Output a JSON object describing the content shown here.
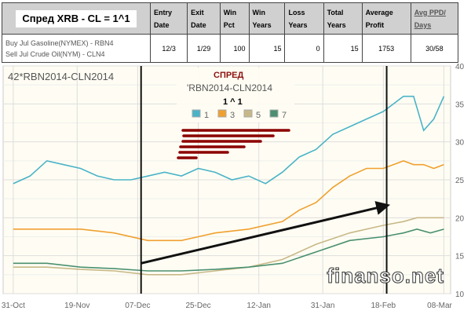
{
  "table": {
    "title": "Спред XRB - CL = 1^1",
    "headers": [
      "Entry Date",
      "Exit Date",
      "Win Pct",
      "Win Years",
      "Loss Years",
      "Total Years",
      "Average Profit",
      "Avg PPD/ Days"
    ],
    "buy_line": "Buy Jul Gasoline(NYMEX) - RBN4",
    "sell_line": "Sell Jul Crude Oil(NYM) - CLN4",
    "values": [
      "12/3",
      "1/29",
      "100",
      "15",
      "0",
      "15",
      "1753",
      "30/58"
    ]
  },
  "chart_data": {
    "type": "line",
    "title": "42*RBN2014-CLN2014",
    "legend_title": "СПРЕД",
    "legend_subtitle": "'RBN2014-CLN2014",
    "legend_ratio": "1 ^ 1",
    "xlabel": "",
    "ylabel": "",
    "ylim": [
      10,
      40
    ],
    "yticks": [
      10,
      15,
      20,
      25,
      30,
      35,
      40
    ],
    "xticks": [
      "31-Oct",
      "19-Nov",
      "07-Dec",
      "25-Dec",
      "12-Jan",
      "31-Jan",
      "18-Feb",
      "08-Mar"
    ],
    "xtick_days": [
      0,
      19,
      37,
      55,
      73,
      92,
      110,
      128
    ],
    "xlim": [
      -3,
      130
    ],
    "series": [
      {
        "name": "1",
        "color": "#4ab3c8",
        "days": [
          0,
          5,
          10,
          15,
          20,
          25,
          30,
          35,
          40,
          45,
          50,
          55,
          60,
          65,
          70,
          75,
          80,
          85,
          90,
          95,
          100,
          105,
          110,
          113,
          116,
          119,
          122,
          125,
          128
        ],
        "values": [
          24.5,
          25.5,
          27.5,
          27,
          26.5,
          25.5,
          25,
          25,
          25.5,
          26,
          25.5,
          26.5,
          26,
          25,
          25.5,
          24.5,
          26,
          28,
          29,
          31,
          32,
          33,
          34,
          35,
          36,
          36,
          31.5,
          33,
          36
        ]
      },
      {
        "name": "3",
        "color": "#f0a030",
        "days": [
          0,
          10,
          20,
          30,
          40,
          50,
          60,
          70,
          80,
          85,
          90,
          95,
          100,
          105,
          110,
          116,
          119,
          122,
          125,
          128
        ],
        "values": [
          18.5,
          18.5,
          18.5,
          18,
          17,
          17,
          18,
          18.5,
          19.5,
          21,
          22,
          24,
          25.5,
          26.5,
          26.5,
          27.5,
          27,
          27,
          26.5,
          27
        ]
      },
      {
        "name": "5",
        "color": "#c8b888",
        "days": [
          0,
          10,
          20,
          30,
          40,
          50,
          60,
          70,
          80,
          90,
          100,
          110,
          116,
          120,
          124,
          128
        ],
        "values": [
          13.5,
          13.5,
          13.2,
          13,
          12.5,
          12.5,
          13,
          13.5,
          14.5,
          16.5,
          18,
          19,
          19.5,
          20,
          20,
          20
        ]
      },
      {
        "name": "7",
        "color": "#4a9070",
        "days": [
          0,
          10,
          20,
          30,
          40,
          50,
          60,
          70,
          80,
          90,
          100,
          110,
          116,
          120,
          124,
          128
        ],
        "values": [
          14,
          14,
          13.5,
          13.3,
          13,
          13,
          13.2,
          13.5,
          14,
          15.5,
          17,
          17.5,
          18,
          18.5,
          18,
          18.5
        ]
      }
    ],
    "markers": {
      "vertical_line_days": [
        38,
        111
      ],
      "arrow_from": [
        38,
        14
      ],
      "arrow_to": [
        110,
        21.5
      ]
    }
  },
  "watermark": "finanso.net"
}
